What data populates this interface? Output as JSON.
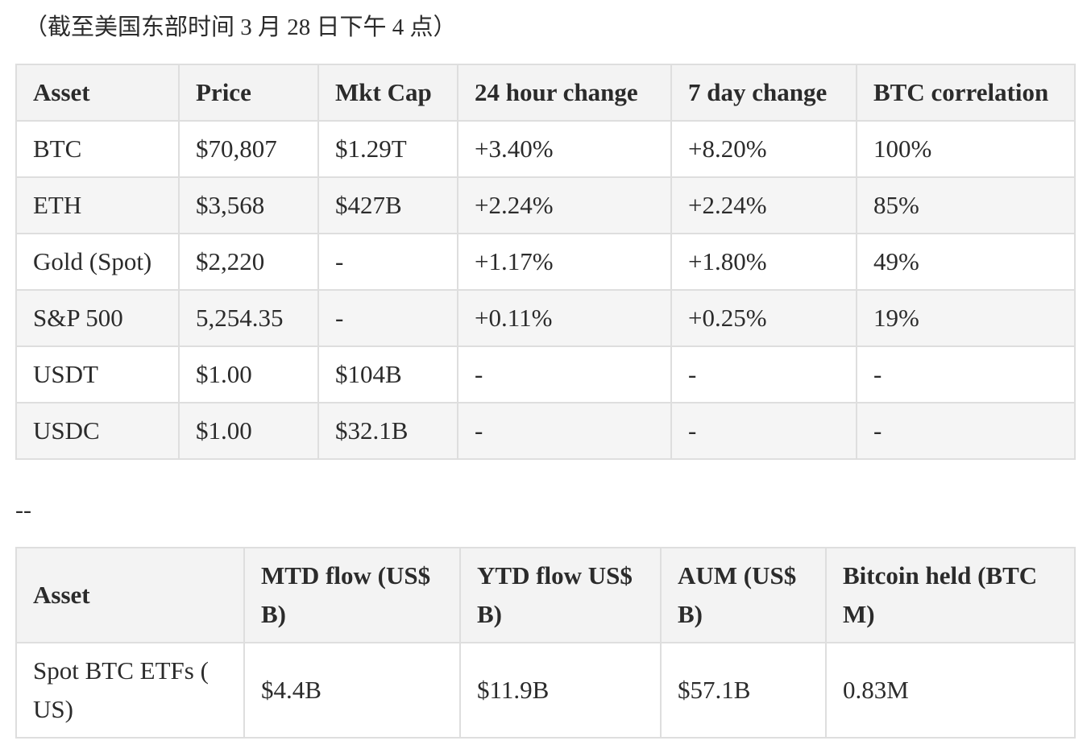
{
  "caption": "（截至美国东部时间 3 月 28 日下午 4 点）",
  "divider": "--",
  "prices": {
    "headers": [
      "Asset",
      "Price",
      "Mkt Cap",
      "24 hour change",
      "7 day change",
      "BTC correlation"
    ],
    "rows": [
      [
        "BTC",
        "$70,807",
        "$1.29T",
        "+3.40%",
        "+8.20%",
        "100%"
      ],
      [
        "ETH",
        "$3,568",
        "$427B",
        "+2.24%",
        "+2.24%",
        "85%"
      ],
      [
        "Gold (Spot)",
        "$2,220",
        "-",
        "+1.17%",
        "+1.80%",
        "49%"
      ],
      [
        "S&P 500",
        "5,254.35",
        "-",
        "+0.11%",
        "+0.25%",
        "19%"
      ],
      [
        "USDT",
        "$1.00",
        "$104B",
        "-",
        "-",
        "-"
      ],
      [
        "USDC",
        "$1.00",
        "$32.1B",
        "-",
        "-",
        "-"
      ]
    ]
  },
  "etf": {
    "headers": [
      "Asset",
      "MTD flow (US$ B)",
      "YTD flow US$ B)",
      "AUM (US$ B)",
      "Bitcoin held (BTC M)"
    ],
    "rows": [
      [
        "Spot BTC ETFs ( US)",
        "$4.4B",
        "$11.9B",
        "$57.1B",
        "0.83M"
      ]
    ]
  }
}
